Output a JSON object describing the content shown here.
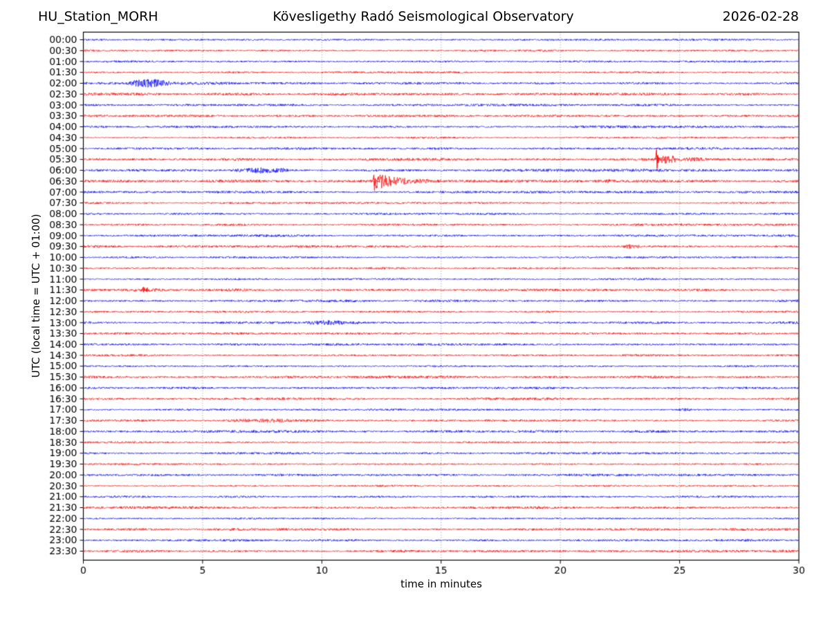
{
  "chart_data": {
    "type": "line",
    "subtype": "helicorder-seismogram",
    "station": "HU_Station_MORH",
    "title": "Kövesligethy Radó Seismological Observatory",
    "date": "2026-02-28",
    "xlabel": "time in minutes",
    "ylabel": "UTC (local time = UTC + 01:00)",
    "xlim": [
      0,
      30
    ],
    "x_ticks": [
      0,
      5,
      10,
      15,
      20,
      25,
      30
    ],
    "grid_minutes": [
      5,
      10,
      15,
      20,
      25
    ],
    "grid_on": true,
    "minutes_per_row": 30,
    "row_labels": [
      "00:00",
      "00:30",
      "01:00",
      "01:30",
      "02:00",
      "02:30",
      "03:00",
      "03:30",
      "04:00",
      "04:30",
      "05:00",
      "05:30",
      "06:00",
      "06:30",
      "07:00",
      "07:30",
      "08:00",
      "08:30",
      "09:00",
      "09:30",
      "10:00",
      "10:30",
      "11:00",
      "11:30",
      "12:00",
      "12:30",
      "13:00",
      "13:30",
      "14:00",
      "14:30",
      "15:00",
      "15:30",
      "16:00",
      "16:30",
      "17:00",
      "17:30",
      "18:00",
      "18:30",
      "19:00",
      "19:30",
      "20:00",
      "20:30",
      "21:00",
      "21:30",
      "22:00",
      "22:30",
      "23:00",
      "23:30"
    ],
    "trace_colors": {
      "even": "#0000ff",
      "odd": "#ff0000"
    },
    "grid_color": "#888888",
    "axis_color": "#000000",
    "noise_base_amplitude": 1.15,
    "events": [
      {
        "row": "02:00",
        "type": "burst",
        "start": 1.8,
        "end": 3.7,
        "amp": 3.6
      },
      {
        "row": "02:00",
        "type": "burst",
        "start": 3.7,
        "end": 6.3,
        "amp": 1.5
      },
      {
        "row": "05:30",
        "type": "impulse",
        "time": 24.05,
        "up": 14,
        "down": 13
      },
      {
        "row": "05:30",
        "type": "burst",
        "start": 24.12,
        "end": 24.9,
        "amp": 3.8
      },
      {
        "row": "05:30",
        "type": "burst",
        "start": 24.9,
        "end": 26.2,
        "amp": 1.8
      },
      {
        "row": "06:00",
        "type": "burst",
        "start": 6.1,
        "end": 8.7,
        "amp": 3.6
      },
      {
        "row": "06:30",
        "type": "quake",
        "start": 12.2,
        "end": 16.8,
        "amp": 7,
        "onset_up": 9,
        "onset_down": 7
      },
      {
        "row": "06:30",
        "type": "burst",
        "start": 13.9,
        "end": 14.6,
        "amp": 2.2
      },
      {
        "row": "06:30",
        "type": "burst",
        "start": 21.4,
        "end": 22.4,
        "amp": 1.7
      },
      {
        "row": "09:30",
        "type": "burst",
        "start": 22.5,
        "end": 23.4,
        "amp": 2.2
      },
      {
        "row": "11:30",
        "type": "impulse",
        "time": 2.52,
        "up": 3.5,
        "down": 3
      },
      {
        "row": "11:30",
        "type": "burst",
        "start": 2.45,
        "end": 3.0,
        "amp": 1.8
      },
      {
        "row": "13:00",
        "type": "burst",
        "start": 9.3,
        "end": 11.7,
        "amp": 3.0
      },
      {
        "row": "17:00",
        "type": "burst",
        "start": 24.9,
        "end": 25.6,
        "amp": 2.0
      },
      {
        "row": "17:30",
        "type": "burst",
        "start": 5.75,
        "end": 9.0,
        "amp": 2.4
      },
      {
        "row": "17:30",
        "type": "burst",
        "start": 9.0,
        "end": 10.4,
        "amp": 1.5
      }
    ]
  }
}
